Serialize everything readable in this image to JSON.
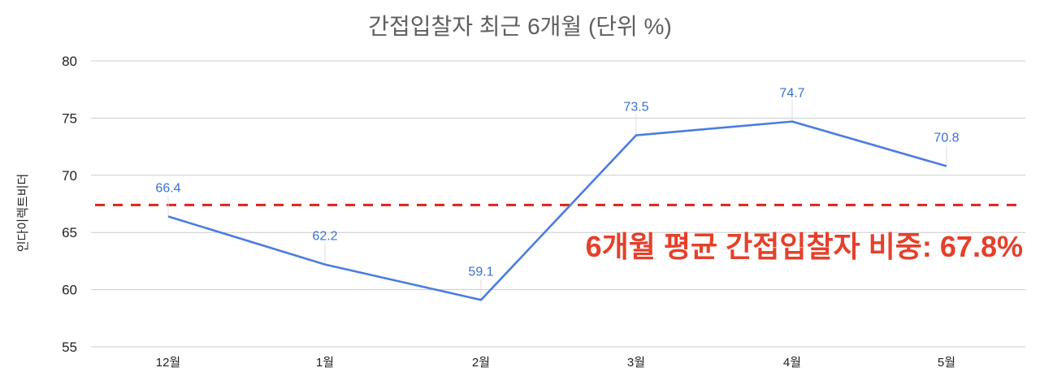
{
  "chart_data": {
    "type": "line",
    "title": "간접입찰자 최근 6개월 (단위 %)",
    "xlabel": "",
    "ylabel": "인다이렉트비더",
    "categories": [
      "12월",
      "1월",
      "2월",
      "3월",
      "4월",
      "5월"
    ],
    "series": [
      {
        "name": "간접입찰자 비중",
        "values": [
          66.4,
          62.2,
          59.1,
          73.5,
          74.7,
          70.8
        ],
        "color": "#4a7de0"
      }
    ],
    "ylim": [
      55,
      80
    ],
    "yticks": [
      55,
      60,
      65,
      70,
      75,
      80
    ],
    "grid": true,
    "legend": "none",
    "reference_line": {
      "value": 67.4,
      "style": "dashed",
      "color": "#d9261c"
    },
    "annotation": {
      "text": "6개월 평균 간접입찰자 비중: 67.8%",
      "color": "#e5402a"
    }
  }
}
